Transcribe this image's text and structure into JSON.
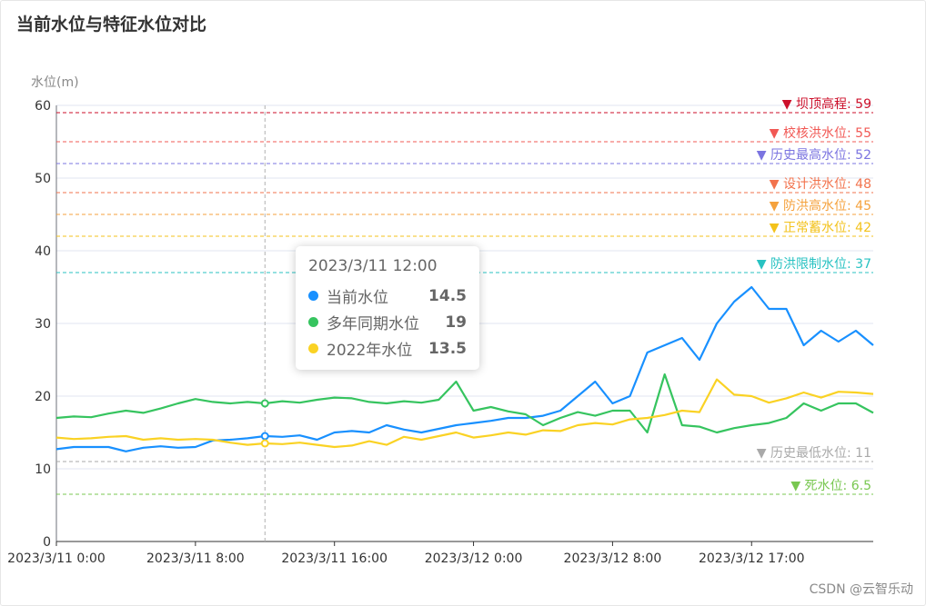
{
  "title": "当前水位与特征水位对比",
  "watermark": "CSDN @云智乐动",
  "tooltip": {
    "header": "2023/3/11 12:00",
    "rows": [
      {
        "name": "当前水位",
        "value": "14.5",
        "color": "#1890ff"
      },
      {
        "name": "多年同期水位",
        "value": "19",
        "color": "#36c45f"
      },
      {
        "name": "2022年水位",
        "value": "13.5",
        "color": "#fad224"
      }
    ]
  },
  "chart_data": {
    "type": "line",
    "ylabel": "水位(m)",
    "ylim": [
      0,
      60
    ],
    "yticks": [
      0,
      10,
      20,
      30,
      40,
      50,
      60
    ],
    "xtick_labels": [
      "2023/3/11 0:00",
      "2023/3/11 8:00",
      "2023/3/11 16:00",
      "2023/3/12 0:00",
      "2023/3/12 8:00",
      "2023/3/12 17:00"
    ],
    "xtick_indices": [
      0,
      8,
      16,
      24,
      32,
      40
    ],
    "n_points": 48,
    "highlight_index": 12,
    "series": [
      {
        "name": "当前水位",
        "color": "#1890ff",
        "values": [
          12.7,
          13.0,
          13.0,
          13.0,
          12.4,
          12.9,
          13.1,
          12.9,
          13.0,
          13.9,
          14.0,
          14.2,
          14.5,
          14.4,
          14.6,
          14.0,
          15.0,
          15.2,
          15.0,
          16.0,
          15.4,
          15.0,
          15.5,
          16.0,
          16.3,
          16.6,
          17.0,
          17.0,
          17.3,
          18.0,
          20.0,
          22.0,
          19.0,
          20.0,
          26.0,
          27.0,
          28.0,
          25.0,
          30.0,
          33.0,
          35.0,
          32.0,
          32.0,
          27.0,
          29.0,
          27.5,
          29.0,
          27.0
        ]
      },
      {
        "name": "多年同期水位",
        "color": "#36c45f",
        "values": [
          17.0,
          17.2,
          17.1,
          17.6,
          18.0,
          17.7,
          18.3,
          19.0,
          19.6,
          19.2,
          19.0,
          19.2,
          19.0,
          19.3,
          19.1,
          19.5,
          19.8,
          19.7,
          19.2,
          19.0,
          19.3,
          19.1,
          19.5,
          22.0,
          18.0,
          18.5,
          17.9,
          17.5,
          16.0,
          17.0,
          17.8,
          17.3,
          18.0,
          18.0,
          15.0,
          23.0,
          16.0,
          15.8,
          15.0,
          15.6,
          16.0,
          16.3,
          17.0,
          19.0,
          18.0,
          19.0,
          19.0,
          17.7
        ]
      },
      {
        "name": "2022年水位",
        "color": "#fad224",
        "values": [
          14.3,
          14.1,
          14.2,
          14.4,
          14.5,
          14.0,
          14.2,
          14.0,
          14.1,
          14.0,
          13.6,
          13.3,
          13.5,
          13.4,
          13.6,
          13.3,
          13.0,
          13.2,
          13.8,
          13.3,
          14.4,
          14.0,
          14.5,
          15.0,
          14.3,
          14.6,
          15.0,
          14.7,
          15.3,
          15.2,
          16.0,
          16.3,
          16.1,
          16.8,
          17.0,
          17.4,
          18.0,
          17.8,
          22.3,
          20.2,
          20.0,
          19.1,
          19.7,
          20.5,
          19.8,
          20.6,
          20.5,
          20.3
        ]
      }
    ],
    "reference_lines": [
      {
        "label": "坝顶高程: 59",
        "value": 59,
        "color": "#cc0f2a"
      },
      {
        "label": "校核洪水位: 55",
        "value": 55,
        "color": "#f15854"
      },
      {
        "label": "历史最高水位: 52",
        "value": 52,
        "color": "#7b74e0"
      },
      {
        "label": "设计洪水位: 48",
        "value": 48,
        "color": "#f2734d"
      },
      {
        "label": "防洪高水位: 45",
        "value": 45,
        "color": "#f5a23d"
      },
      {
        "label": "正常蓄水位: 42",
        "value": 42,
        "color": "#f3c21b"
      },
      {
        "label": "防洪限制水位: 37",
        "value": 37,
        "color": "#28c2c2"
      },
      {
        "label": "历史最低水位: 11",
        "value": 11,
        "color": "#a9a9a9"
      },
      {
        "label": "死水位: 6.5",
        "value": 6.5,
        "color": "#78c750"
      }
    ]
  }
}
